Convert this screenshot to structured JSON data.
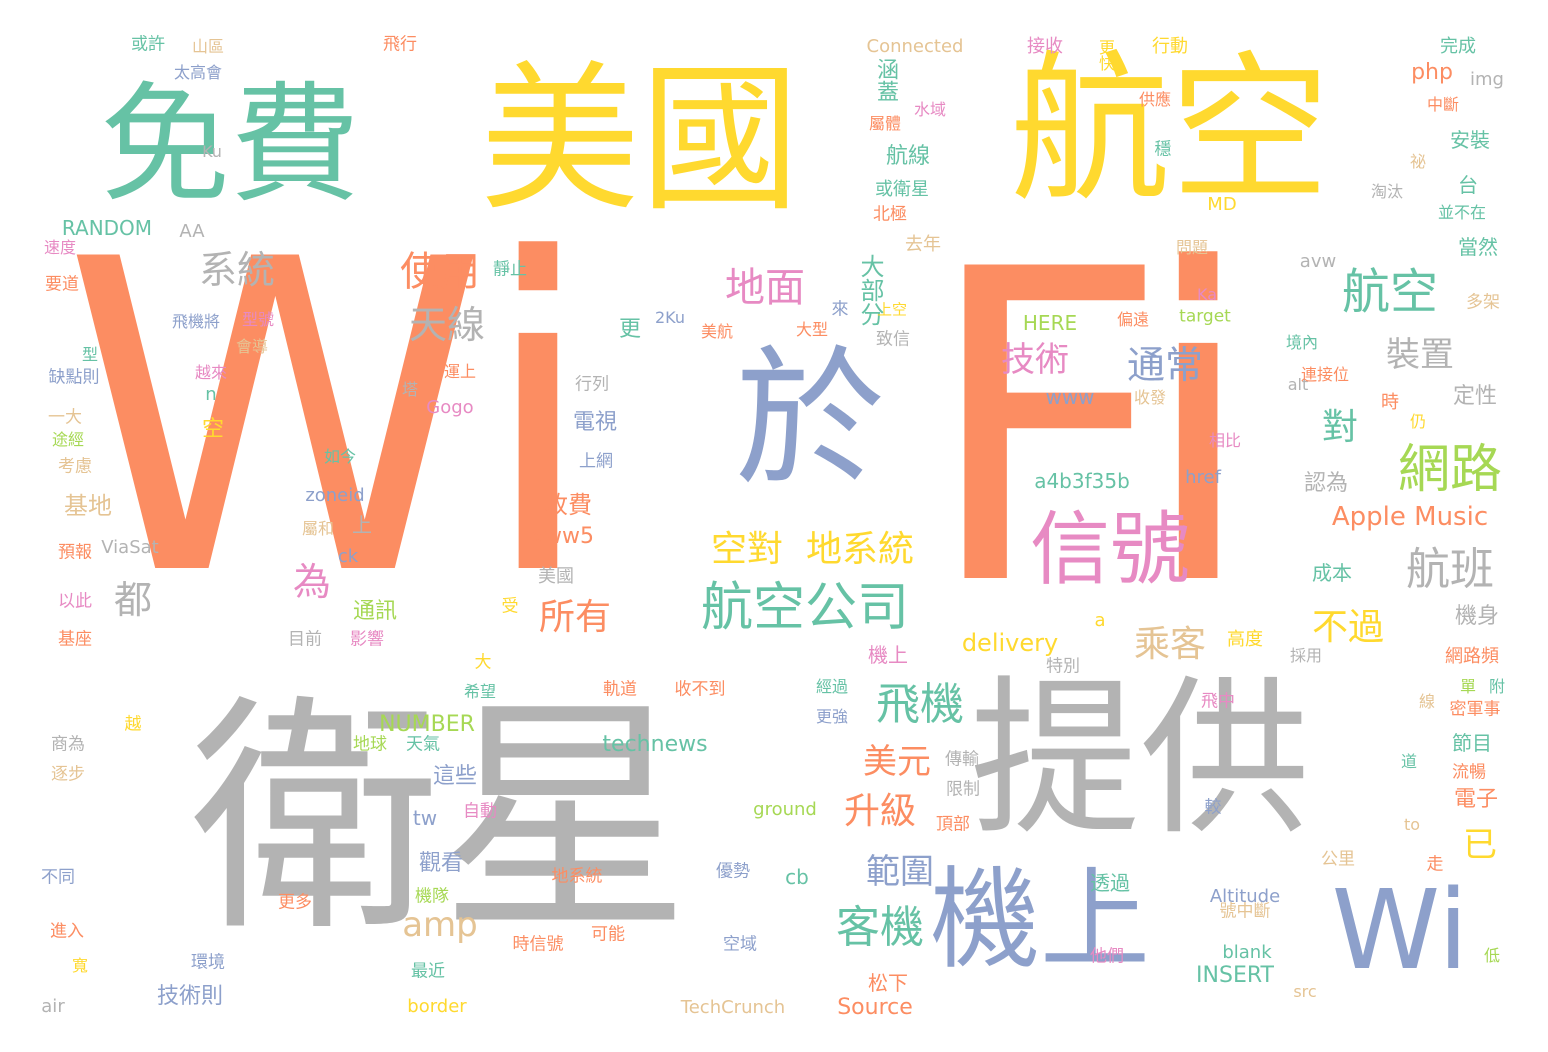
{
  "palette": {
    "orange": "#fc8d62",
    "teal": "#66c2a5",
    "blue": "#8da0cb",
    "pink": "#e78ac3",
    "green": "#a6d854",
    "yellow": "#ffd92f",
    "tan": "#e5c494",
    "gray": "#b3b3b3"
  },
  "words": [
    {
      "text": "Wi",
      "color": "orange"
    },
    {
      "text": "Fi",
      "color": "orange"
    },
    {
      "text": "衛星",
      "color": "gray"
    },
    {
      "text": "提供",
      "color": "gray"
    },
    {
      "text": "美國",
      "color": "yellow"
    },
    {
      "text": "航空",
      "color": "yellow"
    },
    {
      "text": "免費",
      "color": "teal"
    },
    {
      "text": "於",
      "color": "blue"
    },
    {
      "text": "機上",
      "color": "blue"
    },
    {
      "text": "Wi",
      "color": "blue"
    },
    {
      "text": "信號",
      "color": "pink"
    },
    {
      "text": "航空公司",
      "color": "teal"
    },
    {
      "text": "網路",
      "color": "green"
    },
    {
      "text": "航空",
      "color": "teal"
    },
    {
      "text": "航班",
      "color": "gray"
    },
    {
      "text": "飛機",
      "color": "teal"
    },
    {
      "text": "客機",
      "color": "teal"
    },
    {
      "text": "地面",
      "color": "pink"
    },
    {
      "text": "使用",
      "color": "orange"
    },
    {
      "text": "天線",
      "color": "gray"
    },
    {
      "text": "系統",
      "color": "gray"
    },
    {
      "text": "空對",
      "color": "yellow"
    },
    {
      "text": "地系統",
      "color": "yellow"
    },
    {
      "text": "通常",
      "color": "blue"
    },
    {
      "text": "技術",
      "color": "pink"
    },
    {
      "text": "裝置",
      "color": "gray"
    },
    {
      "text": "都",
      "color": "gray"
    },
    {
      "text": "為",
      "color": "pink"
    },
    {
      "text": "amp",
      "color": "tan"
    },
    {
      "text": "所有",
      "color": "orange"
    },
    {
      "text": "乘客",
      "color": "tan"
    },
    {
      "text": "不過",
      "color": "yellow"
    },
    {
      "text": "對",
      "color": "teal"
    },
    {
      "text": "已",
      "color": "yellow"
    },
    {
      "text": "美元",
      "color": "orange"
    },
    {
      "text": "升級",
      "color": "orange"
    },
    {
      "text": "範圍",
      "color": "blue"
    },
    {
      "text": "Apple Music",
      "color": "orange"
    },
    {
      "text": "大部分",
      "color": "teal"
    },
    {
      "text": "收費",
      "color": "orange"
    },
    {
      "text": "delivery",
      "color": "yellow"
    },
    {
      "text": "technews",
      "color": "teal"
    },
    {
      "text": "NUMBER",
      "color": "green"
    },
    {
      "text": "RANDOM",
      "color": "teal"
    },
    {
      "text": "Connected",
      "color": "tan"
    },
    {
      "text": "TechCrunch",
      "color": "tan"
    },
    {
      "text": "Source",
      "color": "orange"
    },
    {
      "text": "INSERT",
      "color": "teal"
    },
    {
      "text": "Altitude",
      "color": "blue"
    },
    {
      "text": "ground",
      "color": "green"
    },
    {
      "text": "a4b3f35b",
      "color": "teal"
    },
    {
      "text": "www5",
      "color": "orange"
    },
    {
      "text": "www",
      "color": "blue"
    },
    {
      "text": "HERE",
      "color": "green"
    },
    {
      "text": "target",
      "color": "green"
    },
    {
      "text": "zoneid",
      "color": "blue"
    },
    {
      "text": "ViaSat",
      "color": "gray"
    },
    {
      "text": "Gogo",
      "color": "pink"
    },
    {
      "text": "href",
      "color": "blue"
    },
    {
      "text": "php",
      "color": "orange"
    },
    {
      "text": "img",
      "color": "gray"
    },
    {
      "text": "avw",
      "color": "gray"
    },
    {
      "text": "blank",
      "color": "teal"
    },
    {
      "text": "border",
      "color": "yellow"
    },
    {
      "text": "air",
      "color": "gray"
    },
    {
      "text": "src",
      "color": "tan"
    },
    {
      "text": "alt",
      "color": "gray"
    },
    {
      "text": "tw",
      "color": "blue"
    },
    {
      "text": "cb",
      "color": "teal"
    },
    {
      "text": "ck",
      "color": "blue"
    },
    {
      "text": "AA",
      "color": "gray"
    },
    {
      "text": "MD",
      "color": "yellow"
    },
    {
      "text": "Ka",
      "color": "pink"
    },
    {
      "text": "Ku",
      "color": "gray"
    },
    {
      "text": "2Ku",
      "color": "blue"
    },
    {
      "text": "to",
      "color": "tan"
    },
    {
      "text": "a",
      "color": "yellow"
    },
    {
      "text": "n",
      "color": "teal"
    },
    {
      "text": "涵蓋",
      "color": "teal"
    },
    {
      "text": "航線",
      "color": "teal"
    },
    {
      "text": "或衛星",
      "color": "teal"
    },
    {
      "text": "北極",
      "color": "orange"
    },
    {
      "text": "屬體",
      "color": "orange"
    },
    {
      "text": "水域",
      "color": "pink"
    },
    {
      "text": "接收",
      "color": "pink"
    },
    {
      "text": "更快",
      "color": "yellow"
    },
    {
      "text": "行動",
      "color": "yellow"
    },
    {
      "text": "完成",
      "color": "teal"
    },
    {
      "text": "中斷",
      "color": "orange"
    },
    {
      "text": "安裝",
      "color": "teal"
    },
    {
      "text": "淘汰",
      "color": "gray"
    },
    {
      "text": "當然",
      "color": "teal"
    },
    {
      "text": "去年",
      "color": "tan"
    },
    {
      "text": "問題",
      "color": "tan"
    },
    {
      "text": "多架",
      "color": "tan"
    },
    {
      "text": "致信",
      "color": "gray"
    },
    {
      "text": "偏遠",
      "color": "orange"
    },
    {
      "text": "境內",
      "color": "teal"
    },
    {
      "text": "連接位",
      "color": "orange"
    },
    {
      "text": "收發",
      "color": "tan"
    },
    {
      "text": "定性",
      "color": "gray"
    },
    {
      "text": "相比",
      "color": "pink"
    },
    {
      "text": "認為",
      "color": "gray"
    },
    {
      "text": "成本",
      "color": "teal"
    },
    {
      "text": "機身",
      "color": "gray"
    },
    {
      "text": "高度",
      "color": "yellow"
    },
    {
      "text": "網路頻",
      "color": "orange"
    },
    {
      "text": "採用",
      "color": "gray"
    },
    {
      "text": "機上",
      "color": "pink"
    },
    {
      "text": "節目",
      "color": "teal"
    },
    {
      "text": "電子",
      "color": "orange"
    },
    {
      "text": "經過",
      "color": "teal"
    },
    {
      "text": "更強",
      "color": "blue"
    },
    {
      "text": "傳輸",
      "color": "gray"
    },
    {
      "text": "限制",
      "color": "gray"
    },
    {
      "text": "頂部",
      "color": "orange"
    },
    {
      "text": "特別",
      "color": "gray"
    },
    {
      "text": "希望",
      "color": "teal"
    },
    {
      "text": "軌道",
      "color": "orange"
    },
    {
      "text": "收不到",
      "color": "orange"
    },
    {
      "text": "目前",
      "color": "gray"
    },
    {
      "text": "影響",
      "color": "pink"
    },
    {
      "text": "通訊",
      "color": "green"
    },
    {
      "text": "美國",
      "color": "gray"
    },
    {
      "text": "這些",
      "color": "blue"
    },
    {
      "text": "觀看",
      "color": "blue"
    },
    {
      "text": "透過",
      "color": "teal"
    },
    {
      "text": "松下",
      "color": "orange"
    },
    {
      "text": "技術則",
      "color": "blue"
    },
    {
      "text": "地系統",
      "color": "orange"
    },
    {
      "text": "時信號",
      "color": "orange"
    },
    {
      "text": "可能",
      "color": "orange"
    },
    {
      "text": "優勢",
      "color": "blue"
    },
    {
      "text": "空域",
      "color": "blue"
    },
    {
      "text": "機隊",
      "color": "green"
    },
    {
      "text": "最近",
      "color": "teal"
    },
    {
      "text": "更多",
      "color": "orange"
    },
    {
      "text": "自動",
      "color": "pink"
    },
    {
      "text": "天氣",
      "color": "teal"
    },
    {
      "text": "地球",
      "color": "green"
    },
    {
      "text": "基地",
      "color": "tan"
    },
    {
      "text": "預報",
      "color": "orange"
    },
    {
      "text": "以此",
      "color": "pink"
    },
    {
      "text": "基座",
      "color": "orange"
    },
    {
      "text": "考慮",
      "color": "tan"
    },
    {
      "text": "一大",
      "color": "tan"
    },
    {
      "text": "缺點則",
      "color": "blue"
    },
    {
      "text": "要道",
      "color": "orange"
    },
    {
      "text": "速度",
      "color": "pink"
    },
    {
      "text": "飛機將",
      "color": "blue"
    },
    {
      "text": "型號",
      "color": "pink"
    },
    {
      "text": "會導",
      "color": "tan"
    },
    {
      "text": "越來",
      "color": "pink"
    },
    {
      "text": "運上",
      "color": "orange"
    },
    {
      "text": "太高會",
      "color": "blue"
    },
    {
      "text": "山區",
      "color": "tan"
    },
    {
      "text": "或許",
      "color": "teal"
    },
    {
      "text": "飛行",
      "color": "orange"
    },
    {
      "text": "靜止",
      "color": "teal"
    },
    {
      "text": "上空",
      "color": "yellow"
    },
    {
      "text": "美航",
      "color": "orange"
    },
    {
      "text": "大型",
      "color": "orange"
    },
    {
      "text": "行列",
      "color": "gray"
    },
    {
      "text": "上網",
      "color": "blue"
    },
    {
      "text": "如今",
      "color": "teal"
    },
    {
      "text": "電視",
      "color": "blue"
    },
    {
      "text": "屬和",
      "color": "tan"
    },
    {
      "text": "逐步",
      "color": "tan"
    },
    {
      "text": "商為",
      "color": "gray"
    },
    {
      "text": "不同",
      "color": "blue"
    },
    {
      "text": "進入",
      "color": "orange"
    },
    {
      "text": "環境",
      "color": "blue"
    },
    {
      "text": "公里",
      "color": "tan"
    },
    {
      "text": "飛中",
      "color": "pink"
    },
    {
      "text": "號中斷",
      "color": "tan"
    },
    {
      "text": "他們",
      "color": "pink"
    },
    {
      "text": "流暢",
      "color": "orange"
    },
    {
      "text": "密軍事",
      "color": "orange"
    },
    {
      "text": "來",
      "color": "blue"
    },
    {
      "text": "更",
      "color": "teal"
    },
    {
      "text": "塔",
      "color": "gray"
    },
    {
      "text": "型",
      "color": "teal"
    },
    {
      "text": "空",
      "color": "yellow"
    },
    {
      "text": "上",
      "color": "gray"
    },
    {
      "text": "越",
      "color": "yellow"
    },
    {
      "text": "受",
      "color": "yellow"
    },
    {
      "text": "大",
      "color": "yellow"
    },
    {
      "text": "時",
      "color": "orange"
    },
    {
      "text": "仍",
      "color": "yellow"
    },
    {
      "text": "較",
      "color": "blue"
    },
    {
      "text": "走",
      "color": "orange"
    },
    {
      "text": "寬",
      "color": "yellow"
    },
    {
      "text": "低",
      "color": "green"
    },
    {
      "text": "供應",
      "color": "orange"
    },
    {
      "text": "穩",
      "color": "teal"
    },
    {
      "text": "祕",
      "color": "tan"
    },
    {
      "text": "台",
      "color": "teal"
    },
    {
      "text": "並不在",
      "color": "teal"
    },
    {
      "text": "途經",
      "color": "green"
    },
    {
      "text": "附",
      "color": "teal"
    },
    {
      "text": "單",
      "color": "green"
    },
    {
      "text": "線",
      "color": "tan"
    },
    {
      "text": "道",
      "color": "teal"
    }
  ]
}
